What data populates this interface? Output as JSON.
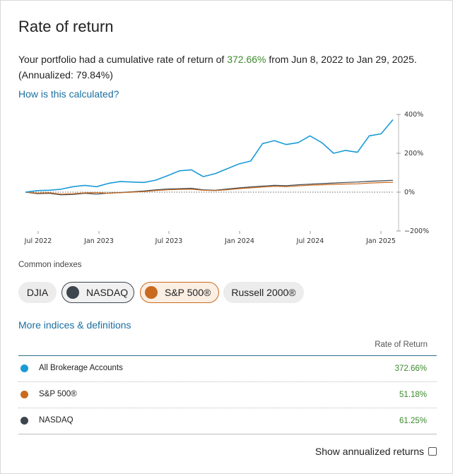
{
  "header": {
    "title": "Rate of return"
  },
  "summary": {
    "prefix": "Your portfolio had a cumulative rate of return of ",
    "cumulative": "372.66%",
    "mid": " from Jun 8, 2022 to Jan 29, 2025. (Annualized: 79.84%)"
  },
  "links": {
    "calc": "How is this calculated?",
    "more": "More indices & definitions"
  },
  "indexes": {
    "label": "Common indexes",
    "chips": [
      "DJIA",
      "NASDAQ",
      "S&P 500®",
      "Russell 2000®"
    ]
  },
  "table": {
    "column_header": "Rate of Return",
    "rows": [
      {
        "name": "All Brokerage Accounts",
        "value": "372.66%",
        "color": "#1a9bd7"
      },
      {
        "name": "S&P 500®",
        "value": "51.18%",
        "color": "#c96a1e"
      },
      {
        "name": "NASDAQ",
        "value": "61.25%",
        "color": "#3d454d"
      }
    ]
  },
  "footer": {
    "annualized_label": "Show annualized returns",
    "annualized_checked": false
  },
  "chart_data": {
    "type": "line",
    "x_ticks": [
      "Jul 2022",
      "Jan 2023",
      "Jul 2023",
      "Jan 2024",
      "Jul 2024",
      "Jan 2025"
    ],
    "y_ticks": [
      "400%",
      "200%",
      "0%",
      "−200%"
    ],
    "ylim": [
      -200,
      400
    ],
    "zero_line": "dotted",
    "series": [
      {
        "name": "All Brokerage Accounts",
        "color": "#1a9bd7",
        "values": [
          0,
          8,
          10,
          15,
          28,
          35,
          28,
          45,
          55,
          52,
          50,
          62,
          85,
          110,
          115,
          80,
          95,
          120,
          145,
          160,
          250,
          265,
          245,
          255,
          290,
          255,
          200,
          215,
          205,
          290,
          300,
          373
        ]
      },
      {
        "name": "S&P 500®",
        "color": "#c96a1e",
        "values": [
          0,
          -5,
          -3,
          -10,
          -8,
          -4,
          -2,
          -6,
          -3,
          0,
          3,
          8,
          12,
          14,
          15,
          10,
          8,
          12,
          18,
          22,
          26,
          30,
          28,
          32,
          36,
          38,
          40,
          42,
          43,
          47,
          49,
          51
        ]
      },
      {
        "name": "NASDAQ",
        "color": "#3d454d",
        "values": [
          0,
          -8,
          -6,
          -14,
          -12,
          -6,
          -10,
          -5,
          -2,
          2,
          6,
          12,
          16,
          18,
          20,
          12,
          10,
          16,
          22,
          27,
          31,
          35,
          33,
          38,
          41,
          44,
          47,
          50,
          52,
          56,
          58,
          61
        ]
      }
    ]
  }
}
